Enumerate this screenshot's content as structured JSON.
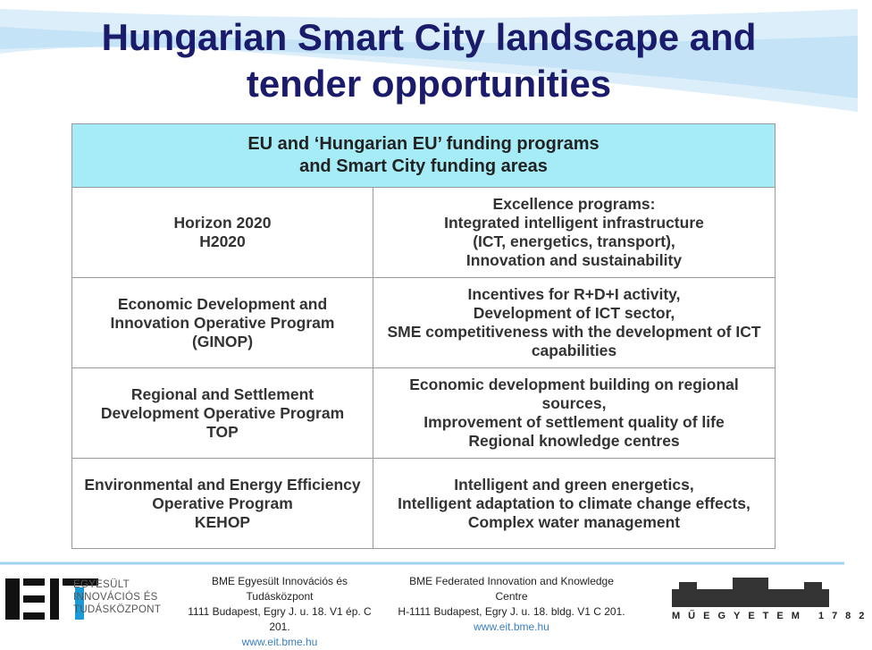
{
  "title": [
    "Hungarian Smart City landscape and",
    "tender opportunities"
  ],
  "table": {
    "header": [
      "EU and ‘Hungarian EU’ funding programs",
      "and Smart City funding areas"
    ],
    "rows": [
      {
        "left": [
          "Horizon 2020",
          "H2020"
        ],
        "right": [
          "Excellence programs:",
          "Integrated intelligent infrastructure",
          "(ICT, energetics, transport),",
          "Innovation and sustainability"
        ]
      },
      {
        "left": [
          "Economic Development and",
          "Innovation Operative Program",
          "(GINOP)"
        ],
        "right": [
          "Incentives for R+D+I activity,",
          "Development of ICT sector,",
          "SME competitiveness with the development of ICT",
          "capabilities"
        ]
      },
      {
        "left": [
          "Regional and Settlement",
          "Development Operative Program",
          "TOP"
        ],
        "right": [
          "Economic development building on regional",
          "sources,",
          "Improvement of settlement quality of life",
          "Regional knowledge centres"
        ]
      },
      {
        "left": [
          "Environmental and Energy Efficiency",
          "Operative Program",
          "KEHOP"
        ],
        "right": [
          "Intelligent and green energetics,",
          "Intelligent adaptation to climate change effects,",
          "Complex water management"
        ]
      }
    ]
  },
  "footer": {
    "logo_lines": [
      "EGYESÜLT",
      "INNOVÁCIÓS ÉS",
      "TUDÁSKÖZPONT"
    ],
    "address_hu": [
      "BME Egyesült Innovációs és Tudásközpont",
      "1111 Budapest, Egry  J. u. 18. V1 ép. C 201.",
      "www.eit.bme.hu"
    ],
    "address_en": [
      "BME Federated Innovation and Knowledge Centre",
      "H-1111 Budapest, Egry J. u. 18. bldg. V1 C  201.",
      "www.eit.bme.hu"
    ],
    "university_logo": "MŰEGYETEM 1782"
  }
}
